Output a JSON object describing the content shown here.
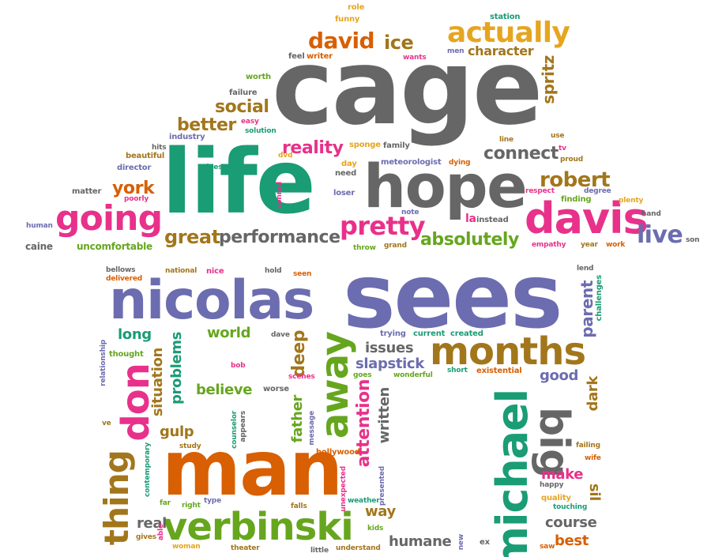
{
  "word_cloud": {
    "words": [
      "cage",
      "sees",
      "nicolas",
      "life",
      "man",
      "hope",
      "davis",
      "going",
      "verbinski",
      "months",
      "michael",
      "away",
      "big",
      "don",
      "thing",
      "actually",
      "david",
      "ice",
      "pretty",
      "great",
      "performance",
      "absolutely",
      "live",
      "robert",
      "york",
      "better",
      "social",
      "reality",
      "connect",
      "spritz",
      "character",
      "role",
      "funny",
      "station",
      "men",
      "wants",
      "feel",
      "writer",
      "worth",
      "failure",
      "easy",
      "solution",
      "industry",
      "beautiful",
      "hits",
      "director",
      "poorly",
      "matter",
      "human",
      "uncomfortable",
      "caine",
      "doesn",
      "dvd",
      "day",
      "need",
      "loser",
      "conrad",
      "meteorologist",
      "dying",
      "line",
      "use",
      "tv",
      "proud",
      "respect",
      "finding",
      "degree",
      "plenty",
      "hand",
      "la",
      "instead",
      "note",
      "throw",
      "grand",
      "empathy",
      "year",
      "work",
      "son",
      "sponge",
      "family",
      "bellows",
      "delivered",
      "national",
      "nice",
      "hold",
      "seen",
      "lend",
      "parent",
      "challenges",
      "long",
      "world",
      "dave",
      "trying",
      "current",
      "created",
      "relationship",
      "thought",
      "bob",
      "problems",
      "situation",
      "deep",
      "issues",
      "slapstick",
      "short",
      "existential",
      "good",
      "dark",
      "believe",
      "scenes",
      "goes",
      "wonderful",
      "worse",
      "father",
      "attention",
      "written",
      "gulp",
      "ve",
      "contemporary",
      "study",
      "counselor",
      "appears",
      "message",
      "hollywood",
      "unexpected",
      "presented",
      "make",
      "failing",
      "wife",
      "happy",
      "quality",
      "touching",
      "sil",
      "far",
      "right",
      "type",
      "falls",
      "weather",
      "real",
      "way",
      "course",
      "best",
      "gives",
      "able",
      "woman",
      "theater",
      "little",
      "kids",
      "understand",
      "humane",
      "new",
      "ex",
      "saw"
    ]
  }
}
